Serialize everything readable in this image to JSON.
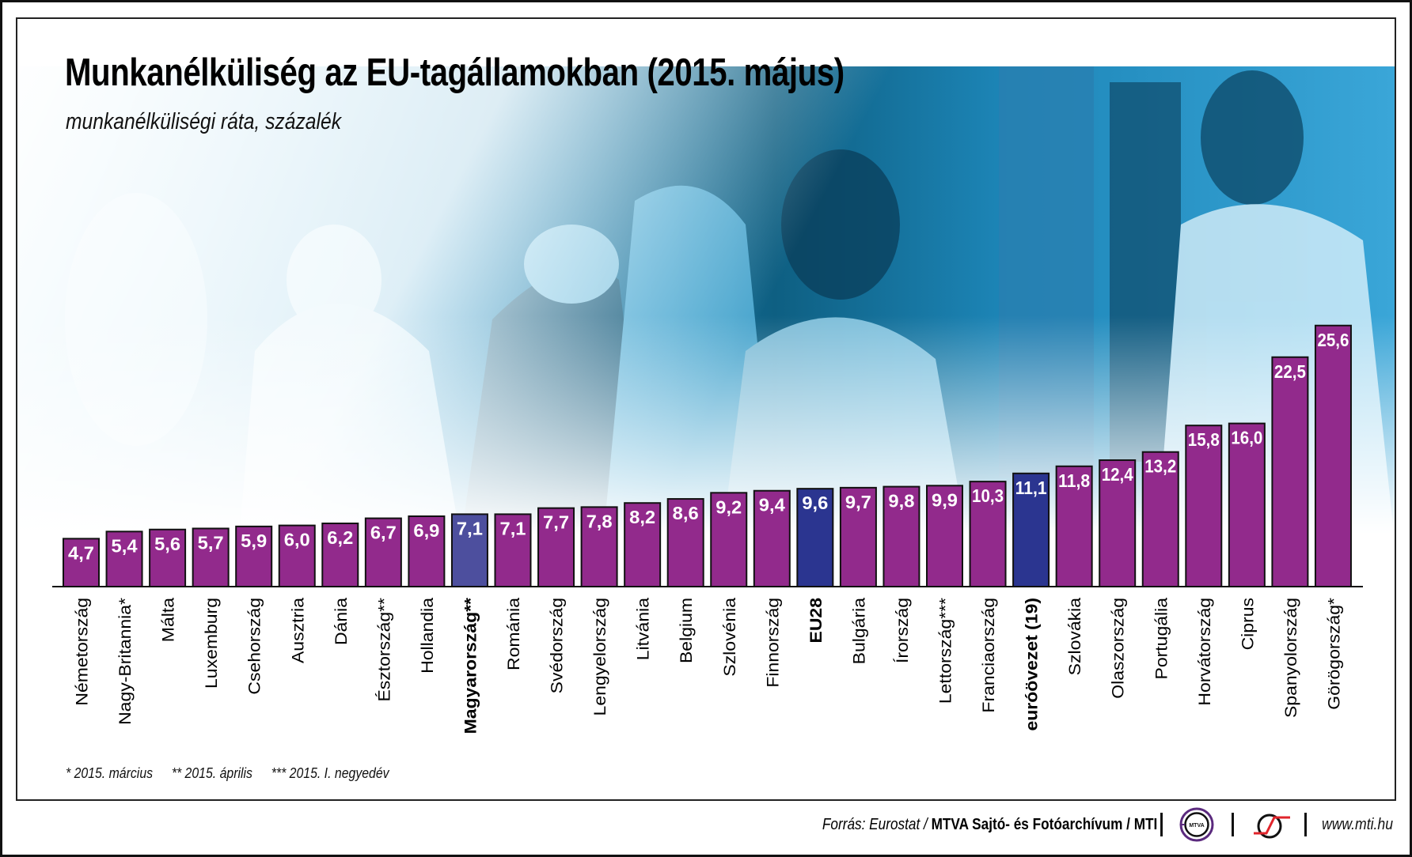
{
  "title": "Munkanélküliség az EU-tagállamokban (2015. május)",
  "subtitle": "munkanélküliségi ráta, százalék",
  "footnotes": [
    "* 2015. március",
    "** 2015. április",
    "*** 2015. I. negyedév"
  ],
  "source": {
    "prefix": "Forrás: Eurostat /",
    "agency": "MTVA Sajtó- és Fotóarchívum / MTI",
    "logo_text": "MTVA",
    "url": "www.mti.hu"
  },
  "colors": {
    "default_bar": "#922a8c",
    "eu28_bar": "#2b3590",
    "hungary_bar": "#4d4f9e",
    "eurozone_bar": "#2b3590",
    "photo_tint": "#1a9bd0"
  },
  "chart_data": {
    "type": "bar",
    "title": "Munkanélküliség az EU-tagállamokban (2015. május)",
    "subtitle": "munkanélküliségi ráta, százalék",
    "xlabel": "",
    "ylabel": "munkanélküliségi ráta, százalék",
    "ylim": [
      0,
      26
    ],
    "grid": false,
    "legend": "none",
    "categories": [
      "Németország",
      "Nagy-Britannia*",
      "Málta",
      "Luxemburg",
      "Csehország",
      "Ausztria",
      "Dánia",
      "Észtország**",
      "Hollandia",
      "Magyarország**",
      "Románia",
      "Svédország",
      "Lengyelország",
      "Litvánia",
      "Belgium",
      "Szlovénia",
      "Finnország",
      "EU28",
      "Bulgária",
      "Írország",
      "Lettország***",
      "Franciaország",
      "euróövezet (19)",
      "Szlovákia",
      "Olaszország",
      "Portugália",
      "Horvátország",
      "Ciprus",
      "Spanyolország",
      "Görögország*"
    ],
    "values": [
      4.7,
      5.4,
      5.6,
      5.7,
      5.9,
      6.0,
      6.2,
      6.7,
      6.9,
      7.1,
      7.1,
      7.7,
      7.8,
      8.2,
      8.6,
      9.2,
      9.4,
      9.6,
      9.7,
      9.8,
      9.9,
      10.3,
      11.1,
      11.8,
      12.4,
      13.2,
      15.8,
      16.0,
      22.5,
      25.6
    ],
    "value_labels": [
      "4,7",
      "5,4",
      "5,6",
      "5,7",
      "5,9",
      "6,0",
      "6,2",
      "6,7",
      "6,9",
      "7,1",
      "7,1",
      "7,7",
      "7,8",
      "8,2",
      "8,6",
      "9,2",
      "9,4",
      "9,6",
      "9,7",
      "9,8",
      "9,9",
      "10,3",
      "11,1",
      "11,8",
      "12,4",
      "13,2",
      "15,8",
      "16,0",
      "22,5",
      "25,6"
    ],
    "highlight": {
      "Magyarország**": "hungary",
      "EU28": "eu28",
      "euróövezet (19)": "eurozone"
    },
    "bold_categories": [
      "Magyarország**",
      "EU28",
      "euróövezet (19)"
    ]
  }
}
